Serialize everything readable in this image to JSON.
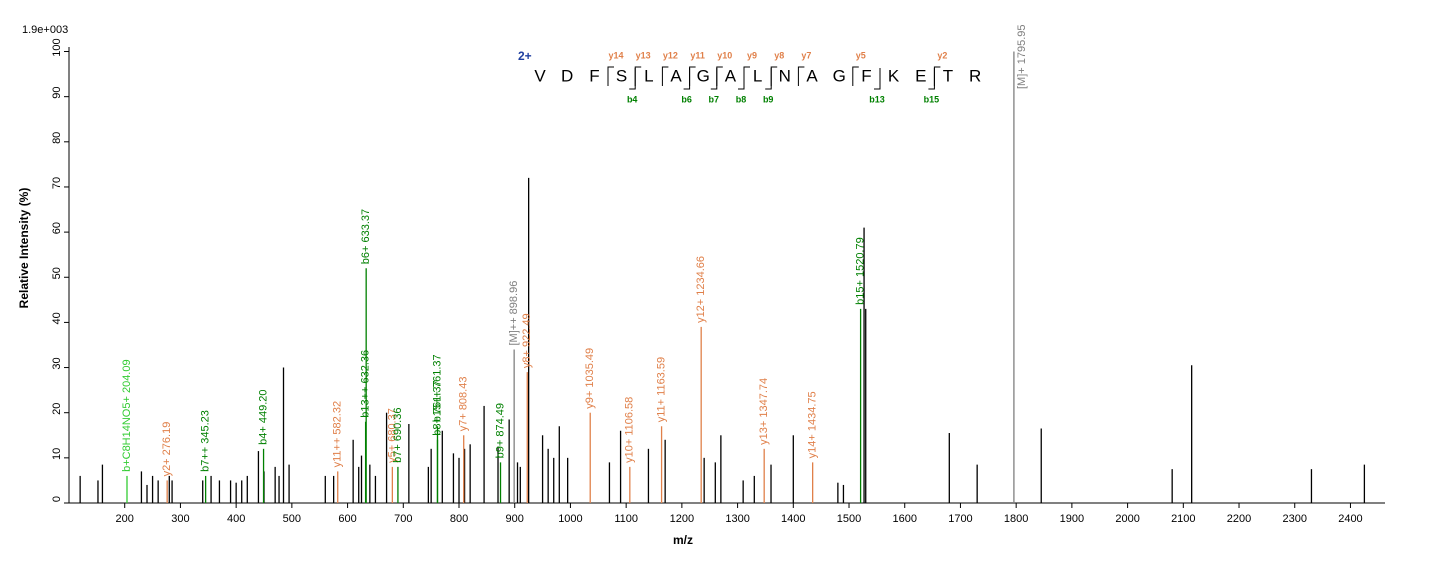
{
  "chart_data": {
    "type": "spectrum",
    "scale_label": "1.9e+003",
    "x_label": "m/z",
    "y_label": "Relative  Intensity (%)",
    "xlim": [
      100,
      2462
    ],
    "ylim": [
      0,
      101
    ],
    "xticks": [
      200,
      300,
      400,
      500,
      600,
      700,
      800,
      900,
      1000,
      1100,
      1200,
      1300,
      1400,
      1500,
      1600,
      1700,
      1800,
      1900,
      2000,
      2100,
      2200,
      2300,
      2400
    ],
    "yticks": [
      0,
      10,
      20,
      30,
      40,
      50,
      60,
      70,
      80,
      90,
      100
    ],
    "peaks": {
      "color": "#000000",
      "x": [
        120,
        152,
        160,
        230,
        240,
        250,
        260,
        280,
        285,
        340,
        355,
        370,
        390,
        400,
        410,
        420,
        440,
        450,
        470,
        477,
        485,
        495,
        560,
        575,
        610,
        620,
        625,
        640,
        650,
        670,
        710,
        745,
        750,
        770,
        790,
        800,
        810,
        820,
        845,
        870,
        890,
        905,
        910,
        925,
        950,
        960,
        970,
        980,
        995,
        1070,
        1090,
        1140,
        1170,
        1240,
        1260,
        1270,
        1310,
        1330,
        1360,
        1400,
        1480,
        1490,
        1527,
        1530,
        1680,
        1730,
        1845,
        2080,
        2115,
        2330,
        2425
      ],
      "values": [
        6,
        5,
        8.5,
        7,
        4,
        6,
        5,
        6,
        5,
        5,
        6,
        5,
        5,
        4.5,
        5,
        6,
        11.5,
        7,
        8,
        6,
        30,
        8.5,
        6,
        6,
        14,
        8,
        10.5,
        8.5,
        6,
        20,
        17.5,
        8,
        12,
        16,
        11,
        10,
        12,
        13,
        21.5,
        12.5,
        18.5,
        9,
        8,
        72,
        15,
        12,
        10,
        17,
        10,
        9,
        16,
        12,
        14,
        10,
        9,
        15,
        5,
        6,
        8.5,
        15,
        4.5,
        4,
        61,
        43,
        15.5,
        8.5,
        16.5,
        7.5,
        30.5,
        7.5,
        8.5
      ]
    },
    "annotations": [
      {
        "label": "b+C8H14NO5+ 204.09",
        "x": 204.09,
        "value": 6,
        "color": "#33cc33"
      },
      {
        "label": "y2+ 276.19",
        "x": 276.19,
        "value": 5,
        "color": "#e0804a"
      },
      {
        "label": "b7++ 345.23",
        "x": 345.23,
        "value": 6,
        "color": "#008000"
      },
      {
        "label": "b4+ 449.20",
        "x": 449.2,
        "value": 12,
        "color": "#008000"
      },
      {
        "label": "y11++ 582.32",
        "x": 582.32,
        "value": 7,
        "color": "#e0804a"
      },
      {
        "label": "b13++ 632.36",
        "x": 632.36,
        "value": 18,
        "color": "#008000"
      },
      {
        "label": "b6+ 633.37",
        "x": 633.37,
        "value": 52,
        "color": "#008000"
      },
      {
        "label": "y5+ 680.37",
        "x": 680.37,
        "value": 8,
        "color": "#e0804a"
      },
      {
        "label": "b7+ 690.36",
        "x": 690.36,
        "value": 8,
        "color": "#008000"
      },
      {
        "label": "b8+ 761.37",
        "x": 761.37,
        "value": 14,
        "color": "#008000"
      },
      {
        "label": "b15++ 761.37",
        "x": 761.37,
        "value": 17,
        "color": "#008000"
      },
      {
        "label": "y7+ 808.43",
        "x": 808.43,
        "value": 15,
        "color": "#e0804a"
      },
      {
        "label": "b9+ 874.49",
        "x": 874.49,
        "value": 9,
        "color": "#008000"
      },
      {
        "label": "[M]++ 898.96",
        "x": 898.96,
        "value": 34,
        "color": "#808080"
      },
      {
        "label": "y8+ 922.49",
        "x": 922.49,
        "value": 29,
        "color": "#e0804a"
      },
      {
        "label": "y9+ 1035.49",
        "x": 1035.49,
        "value": 20,
        "color": "#e0804a"
      },
      {
        "label": "y10+ 1106.58",
        "x": 1106.58,
        "value": 8,
        "color": "#e0804a"
      },
      {
        "label": "y11+ 1163.59",
        "x": 1163.59,
        "value": 17,
        "color": "#e0804a"
      },
      {
        "label": "y12+ 1234.66",
        "x": 1234.66,
        "value": 39,
        "color": "#e0804a"
      },
      {
        "label": "y13+ 1347.74",
        "x": 1347.74,
        "value": 12,
        "color": "#e0804a"
      },
      {
        "label": "y14+ 1434.75",
        "x": 1434.75,
        "value": 9,
        "color": "#e0804a"
      },
      {
        "label": "b15+ 1520.79",
        "x": 1520.79,
        "value": 43,
        "color": "#008000"
      },
      {
        "label": "[M]+ 1795.95",
        "x": 1795.95,
        "value": 100,
        "color": "#808080"
      }
    ],
    "sequence": {
      "charge": "2+",
      "charge_color": "#1f3fa0",
      "residues": [
        "V",
        "D",
        "F",
        "S",
        "L",
        "A",
        "G",
        "A",
        "L",
        "N",
        "A",
        "G",
        "F",
        "K",
        "E",
        "T",
        "R"
      ],
      "y_color": "#e0804a",
      "b_color": "#008000",
      "y_ions": [
        null,
        null,
        "y14",
        "y13",
        "y12",
        "y11",
        "y10",
        "y9",
        "y8",
        "y7",
        null,
        "y5",
        null,
        null,
        "y2",
        null
      ],
      "b_ions": [
        null,
        null,
        null,
        "b4",
        null,
        "b6",
        "b7",
        "b8",
        "b9",
        null,
        null,
        null,
        "b13",
        null,
        "b15",
        null
      ]
    }
  }
}
